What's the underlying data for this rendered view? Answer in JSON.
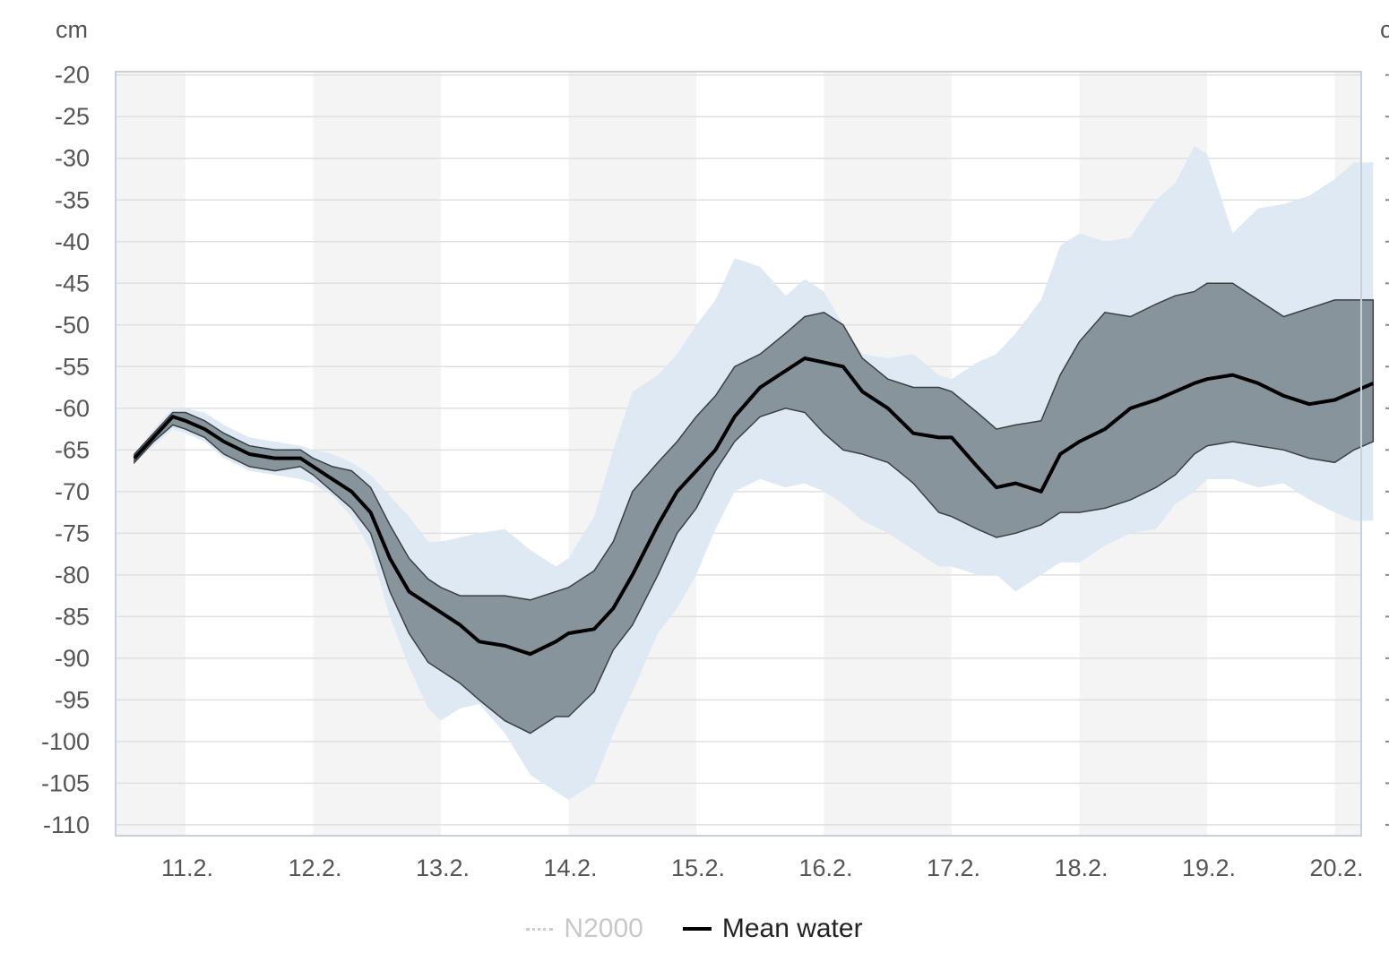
{
  "chart_data": {
    "type": "area",
    "y_unit": "cm",
    "y_unit_right": "c",
    "ylim": [
      -110,
      -20
    ],
    "y_ticks": [
      -20,
      -25,
      -30,
      -35,
      -40,
      -45,
      -50,
      -55,
      -60,
      -65,
      -70,
      -75,
      -80,
      -85,
      -90,
      -95,
      -100,
      -105,
      -110
    ],
    "x_ticks": [
      "11.2.",
      "12.2.",
      "13.2.",
      "14.2.",
      "15.2.",
      "16.2.",
      "17.2.",
      "18.2.",
      "19.2.",
      "20.2."
    ],
    "x_range_days": [
      10.6,
      20.3
    ],
    "grid": true,
    "legend_position": "bottom-center",
    "colors": {
      "outer_band": "#dde8f2",
      "inner_band": "#88949c",
      "mean_line": "#000000",
      "day_shade": "#f4f4f4",
      "grid": "#e0e0e0"
    },
    "series": [
      {
        "name": "Mean water",
        "x": [
          10.6,
          10.75,
          10.9,
          11.0,
          11.15,
          11.3,
          11.5,
          11.7,
          11.9,
          12.0,
          12.15,
          12.3,
          12.45,
          12.6,
          12.75,
          12.9,
          13.0,
          13.15,
          13.3,
          13.5,
          13.7,
          13.9,
          14.0,
          14.2,
          14.35,
          14.5,
          14.7,
          14.85,
          15.0,
          15.15,
          15.3,
          15.5,
          15.7,
          15.85,
          16.0,
          16.15,
          16.3,
          16.5,
          16.7,
          16.9,
          17.0,
          17.2,
          17.35,
          17.5,
          17.7,
          17.85,
          18.0,
          18.2,
          18.4,
          18.6,
          18.75,
          18.9,
          19.0,
          19.2,
          19.4,
          19.6,
          19.8,
          20.0,
          20.15,
          20.3
        ],
        "y": [
          -66,
          -63.5,
          -61,
          -61.5,
          -62.5,
          -64,
          -65.5,
          -66,
          -66,
          -67,
          -68.5,
          -70,
          -72.5,
          -78,
          -82,
          -83.5,
          -84.5,
          -86,
          -88,
          -88.5,
          -89.5,
          -88,
          -87,
          -86.5,
          -84,
          -80,
          -74,
          -70,
          -67.5,
          -65,
          -61,
          -57.5,
          -55.5,
          -54,
          -54.5,
          -55,
          -58,
          -60,
          -63,
          -63.5,
          -63.5,
          -67,
          -69.5,
          -69,
          -70,
          -65.5,
          -64,
          -62.5,
          -60,
          -59,
          -58,
          -57,
          -56.5,
          -56,
          -57,
          -58.5,
          -59.5,
          -59,
          -58,
          -57
        ]
      },
      {
        "name": "",
        "x": [
          10.6,
          10.75,
          10.9,
          11.0,
          11.15,
          11.3,
          11.5,
          11.7,
          11.9,
          12.0,
          12.15,
          12.3,
          12.45,
          12.6,
          12.75,
          12.9,
          13.0,
          13.15,
          13.3,
          13.5,
          13.7,
          13.9,
          14.0,
          14.2,
          14.35,
          14.5,
          14.7,
          14.85,
          15.0,
          15.15,
          15.3,
          15.5,
          15.7,
          15.85,
          16.0,
          16.15,
          16.3,
          16.5,
          16.7,
          16.9,
          17.0,
          17.2,
          17.35,
          17.5,
          17.7,
          17.85,
          18.0,
          18.2,
          18.4,
          18.6,
          18.75,
          18.9,
          19.0,
          19.2,
          19.4,
          19.6,
          19.8,
          20.0,
          20.15,
          20.3
        ],
        "upper": [
          -65.5,
          -63,
          -60.5,
          -60.5,
          -61.5,
          -63,
          -64.5,
          -65,
          -65,
          -66,
          -67,
          -67.5,
          -69.5,
          -74,
          -78,
          -80.5,
          -81.5,
          -82.5,
          -82.5,
          -82.5,
          -83,
          -82,
          -81.5,
          -79.5,
          -76,
          -70,
          -66.5,
          -64,
          -61,
          -58.5,
          -55,
          -53.5,
          -51,
          -49,
          -48.5,
          -50,
          -54,
          -56.5,
          -57.5,
          -57.5,
          -58,
          -60.5,
          -62.5,
          -62,
          -61.5,
          -56,
          -52,
          -48.5,
          -49,
          -47.5,
          -46.5,
          -46,
          -45,
          -45,
          -47,
          -49,
          -48,
          -47,
          -47,
          -47
        ]
      },
      {
        "name": "",
        "x": [
          10.6,
          10.75,
          10.9,
          11.0,
          11.15,
          11.3,
          11.5,
          11.7,
          11.9,
          12.0,
          12.15,
          12.3,
          12.45,
          12.6,
          12.75,
          12.9,
          13.0,
          13.15,
          13.3,
          13.5,
          13.7,
          13.9,
          14.0,
          14.2,
          14.35,
          14.5,
          14.7,
          14.85,
          15.0,
          15.15,
          15.3,
          15.5,
          15.7,
          15.85,
          16.0,
          16.15,
          16.3,
          16.5,
          16.7,
          16.9,
          17.0,
          17.2,
          17.35,
          17.5,
          17.7,
          17.85,
          18.0,
          18.2,
          18.4,
          18.6,
          18.75,
          18.9,
          19.0,
          19.2,
          19.4,
          19.6,
          19.8,
          20.0,
          20.15,
          20.3
        ],
        "lower": [
          -66.5,
          -64,
          -62,
          -62.5,
          -63.5,
          -65.5,
          -67,
          -67.5,
          -67,
          -68,
          -70,
          -72,
          -75,
          -82,
          -87,
          -90.5,
          -91.5,
          -93,
          -95,
          -97.5,
          -99,
          -97,
          -97,
          -94,
          -89,
          -86,
          -80,
          -75,
          -72,
          -67.5,
          -64,
          -61,
          -60,
          -60.5,
          -63,
          -65,
          -65.5,
          -66.5,
          -69,
          -72.5,
          -73,
          -74.5,
          -75.5,
          -75,
          -74,
          -72.5,
          -72.5,
          -72,
          -71,
          -69.5,
          -68,
          -65.5,
          -64.5,
          -64,
          -64.5,
          -65,
          -66,
          -66.5,
          -65,
          -64
        ]
      }
    ],
    "outer_band": {
      "x": [
        10.6,
        10.75,
        10.9,
        11.0,
        11.15,
        11.3,
        11.5,
        11.7,
        11.9,
        12.0,
        12.15,
        12.3,
        12.45,
        12.6,
        12.75,
        12.9,
        13.0,
        13.15,
        13.3,
        13.5,
        13.7,
        13.9,
        14.0,
        14.2,
        14.35,
        14.5,
        14.7,
        14.85,
        15.0,
        15.15,
        15.3,
        15.5,
        15.7,
        15.85,
        16.0,
        16.15,
        16.3,
        16.5,
        16.7,
        16.9,
        17.0,
        17.2,
        17.35,
        17.5,
        17.7,
        17.85,
        18.0,
        18.2,
        18.4,
        18.6,
        18.75,
        18.9,
        19.0,
        19.2,
        19.4,
        19.6,
        19.8,
        20.0,
        20.15,
        20.3
      ],
      "upper": [
        -65.5,
        -62.5,
        -60,
        -60,
        -60.5,
        -62,
        -63.5,
        -64,
        -64.5,
        -65,
        -65.5,
        -66.5,
        -68,
        -70.5,
        -73,
        -76,
        -76,
        -75.5,
        -75,
        -74.5,
        -77,
        -79,
        -78,
        -73,
        -65,
        -58,
        -56,
        -53.5,
        -50,
        -47,
        -42,
        -43,
        -46.5,
        -44.5,
        -46,
        -50,
        -53.5,
        -54,
        -53.5,
        -56,
        -56.5,
        -54.5,
        -53.5,
        -51,
        -47,
        -40.5,
        -39,
        -40,
        -39.5,
        -35,
        -33,
        -28.5,
        -29.5,
        -39,
        -36,
        -35.5,
        -34.5,
        -32.5,
        -30.5,
        -30.5
      ],
      "lower": [
        -66.5,
        -64.5,
        -62.5,
        -63,
        -64,
        -66,
        -67.5,
        -68,
        -68.5,
        -69,
        -70.5,
        -73,
        -77,
        -85,
        -91,
        -96,
        -97.5,
        -96,
        -95.5,
        -99,
        -104,
        -106,
        -107,
        -105,
        -99,
        -94,
        -87,
        -84,
        -80,
        -74.5,
        -70,
        -68.5,
        -69.5,
        -69,
        -70,
        -71.5,
        -73.5,
        -75,
        -77,
        -79,
        -79,
        -80,
        -80,
        -82,
        -80,
        -78.5,
        -78.5,
        -76.5,
        -75,
        -74.5,
        -71.5,
        -70,
        -68.5,
        -68.5,
        -69.5,
        -69,
        -71,
        -72.5,
        -73.5,
        -73.5
      ]
    },
    "legend": [
      {
        "label": "N2000",
        "active": false
      },
      {
        "label": "Mean water",
        "active": true
      }
    ]
  }
}
